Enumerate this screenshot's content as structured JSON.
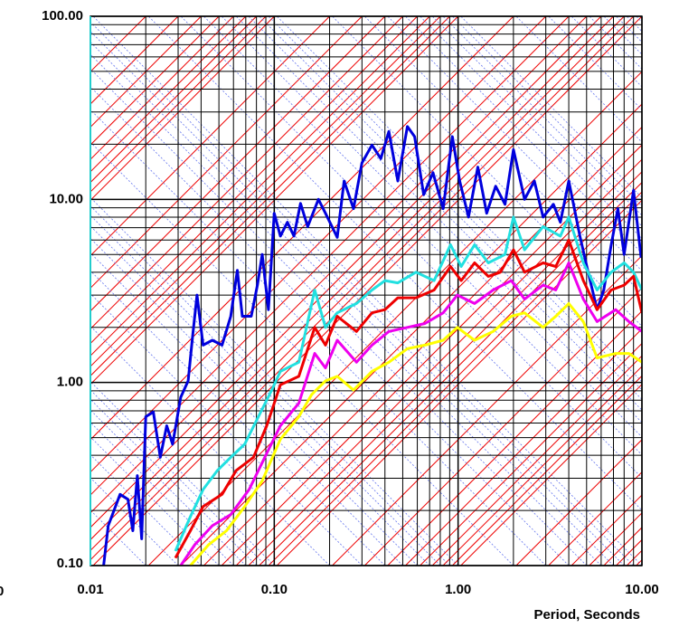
{
  "chart_data": {
    "type": "line",
    "x_label": "Period, Seconds",
    "annotations": [
      "0"
    ],
    "log_x": true,
    "log_y": true,
    "grid": true,
    "xlim": [
      0.01,
      10
    ],
    "ylim": [
      0.1,
      100
    ],
    "xticks": [
      0.01,
      {
        "value": 0.1,
        "label": "0.10"
      },
      {
        "value": 1,
        "label": "1.00"
      },
      {
        "value": 10,
        "label": "10.00"
      }
    ],
    "yticks": [
      {
        "value": 0.1,
        "label": "0.10"
      },
      {
        "value": 1,
        "label": "1.00"
      },
      {
        "value": 10,
        "label": "10.00"
      },
      {
        "value": 100,
        "label": "100.00"
      }
    ],
    "series": [
      {
        "color": "#0000dd",
        "x": [
          0.0118,
          0.0125,
          0.0145,
          0.016,
          0.017,
          0.018,
          0.019,
          0.02,
          0.022,
          0.024,
          0.026,
          0.028,
          0.031,
          0.034,
          0.036,
          0.038,
          0.041,
          0.046,
          0.052,
          0.058,
          0.063,
          0.067,
          0.075,
          0.081,
          0.086,
          0.093,
          0.1,
          0.108,
          0.118,
          0.128,
          0.139,
          0.152,
          0.174,
          0.19,
          0.22,
          0.24,
          0.27,
          0.3,
          0.34,
          0.38,
          0.42,
          0.47,
          0.53,
          0.58,
          0.65,
          0.73,
          0.83,
          0.93,
          1.02,
          1.14,
          1.28,
          1.43,
          1.6,
          1.8,
          2.0,
          2.3,
          2.6,
          2.9,
          3.3,
          3.6,
          4.0,
          4.6,
          5.1,
          5.7,
          6.2,
          6.8,
          7.4,
          8.0,
          9.0,
          9.9
        ],
        "values": [
          0.1,
          0.165,
          0.245,
          0.23,
          0.155,
          0.31,
          0.14,
          0.65,
          0.69,
          0.39,
          0.58,
          0.46,
          0.83,
          1.02,
          1.8,
          3.0,
          1.6,
          1.7,
          1.6,
          2.3,
          4.1,
          2.3,
          2.3,
          3.4,
          5.0,
          2.5,
          8.4,
          6.3,
          7.5,
          6.3,
          9.5,
          7.1,
          10,
          8.4,
          6.2,
          12.6,
          8.9,
          15.8,
          19.8,
          16.7,
          23.5,
          12.6,
          25,
          22,
          10.6,
          14,
          8.9,
          22,
          12.6,
          8,
          15,
          8.4,
          11.8,
          9.4,
          18.7,
          10,
          12.6,
          8,
          9.4,
          7.5,
          12.6,
          6.3,
          4.0,
          2.5,
          3.2,
          5.6,
          8.9,
          5.0,
          11.2,
          4.8
        ]
      },
      {
        "color": "#22e0e0",
        "x": [
          0.029,
          0.035,
          0.041,
          0.049,
          0.058,
          0.069,
          0.082,
          0.097,
          0.108,
          0.136,
          0.166,
          0.19,
          0.22,
          0.28,
          0.34,
          0.4,
          0.47,
          0.59,
          0.74,
          0.91,
          1.04,
          1.23,
          1.46,
          1.8,
          2.0,
          2.3,
          2.9,
          3.6,
          4.0,
          4.8,
          5.7,
          6.8,
          8.0,
          9.0,
          10
        ],
        "values": [
          0.12,
          0.185,
          0.26,
          0.33,
          0.39,
          0.46,
          0.65,
          0.91,
          1.15,
          1.29,
          3.2,
          2.0,
          2.4,
          2.7,
          3.2,
          3.6,
          3.5,
          4.0,
          3.6,
          5.65,
          4.3,
          5.65,
          4.5,
          5.0,
          8.0,
          5.3,
          7.1,
          6.3,
          8.0,
          4.5,
          3.2,
          4.0,
          4.5,
          4.0,
          3.2
        ]
      },
      {
        "color": "#ee0000",
        "x": [
          0.029,
          0.035,
          0.041,
          0.052,
          0.062,
          0.077,
          0.091,
          0.108,
          0.136,
          0.166,
          0.19,
          0.22,
          0.28,
          0.34,
          0.4,
          0.47,
          0.59,
          0.74,
          0.91,
          1.04,
          1.23,
          1.46,
          1.7,
          2.0,
          2.3,
          2.9,
          3.4,
          4.0,
          4.8,
          5.7,
          6.8,
          8.0,
          9.0,
          10
        ],
        "values": [
          0.11,
          0.155,
          0.21,
          0.245,
          0.33,
          0.39,
          0.58,
          0.97,
          1.08,
          2.0,
          1.6,
          2.3,
          1.9,
          2.4,
          2.5,
          2.9,
          2.9,
          3.2,
          4.3,
          3.6,
          4.5,
          3.8,
          4.0,
          5.3,
          4.0,
          4.5,
          4.3,
          6.0,
          3.6,
          2.5,
          3.2,
          3.4,
          3.8,
          2.4
        ]
      },
      {
        "color": "#ee00ee",
        "x": [
          0.031,
          0.037,
          0.046,
          0.058,
          0.073,
          0.091,
          0.108,
          0.136,
          0.166,
          0.19,
          0.22,
          0.28,
          0.34,
          0.42,
          0.53,
          0.66,
          0.83,
          0.99,
          1.23,
          1.55,
          1.95,
          2.3,
          2.9,
          3.4,
          4.0,
          4.8,
          5.7,
          7.2,
          8.5,
          10
        ],
        "values": [
          0.1,
          0.13,
          0.165,
          0.19,
          0.26,
          0.41,
          0.58,
          0.77,
          1.44,
          1.2,
          1.7,
          1.29,
          1.6,
          1.9,
          2.0,
          2.1,
          2.4,
          3.0,
          2.7,
          3.2,
          3.6,
          2.85,
          3.4,
          3.2,
          4.5,
          2.85,
          2.15,
          2.5,
          2.15,
          1.9
        ]
      },
      {
        "color": "#ffff00",
        "x": [
          0.035,
          0.044,
          0.055,
          0.069,
          0.086,
          0.108,
          0.136,
          0.16,
          0.19,
          0.22,
          0.27,
          0.34,
          0.42,
          0.53,
          0.66,
          0.83,
          0.99,
          1.23,
          1.55,
          1.95,
          2.3,
          2.9,
          3.4,
          4.0,
          4.8,
          5.7,
          7.2,
          8.5,
          10
        ],
        "values": [
          0.1,
          0.13,
          0.155,
          0.21,
          0.29,
          0.49,
          0.65,
          0.86,
          1.02,
          1.08,
          0.91,
          1.15,
          1.29,
          1.53,
          1.6,
          1.7,
          2.0,
          1.7,
          1.9,
          2.3,
          2.4,
          2.0,
          2.3,
          2.7,
          2.15,
          1.36,
          1.44,
          1.44,
          1.29
        ]
      }
    ]
  }
}
